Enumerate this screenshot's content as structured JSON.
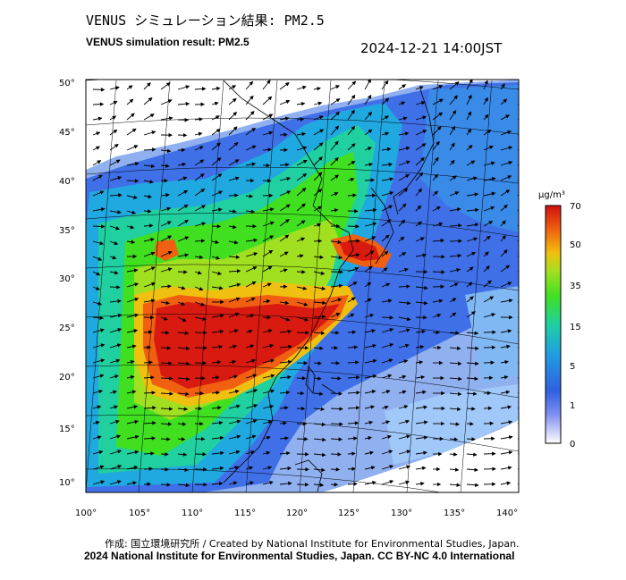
{
  "title_jp": "VENUS シミュレーション結果: PM2.5",
  "title_en": "VENUS simulation result: PM2.5",
  "timestamp": "2024-12-21 14:00JST",
  "map": {
    "lat_labels": [
      "50°",
      "45°",
      "40°",
      "35°",
      "30°",
      "25°",
      "20°",
      "15°",
      "10°"
    ],
    "lon_labels": [
      "100°",
      "105°",
      "110°",
      "115°",
      "120°",
      "125°",
      "130°",
      "135°",
      "140°"
    ]
  },
  "colorbar": {
    "unit": "μg/m³",
    "tick_labels": [
      "70",
      "50",
      "35",
      "15",
      "5",
      "1",
      "0"
    ],
    "colors": [
      "#ffffff",
      "#3060e0",
      "#20a0e0",
      "#20d0a0",
      "#40e020",
      "#a0e020",
      "#f0c010",
      "#f06010",
      "#d01010"
    ]
  },
  "credits": {
    "line1": "作成: 国立環境研究所 / Created by National Institute for Environmental Studies, Japan.",
    "line2": "2024 National Institute for Environmental Studies, Japan. CC BY-NC 4.0 International"
  }
}
